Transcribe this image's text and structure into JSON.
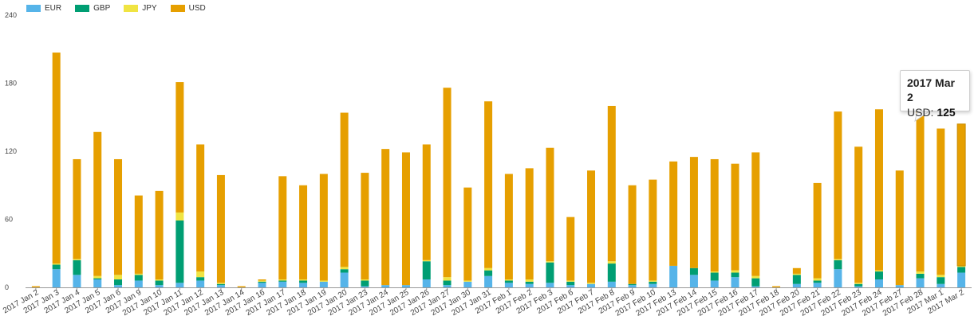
{
  "legend": [
    {
      "name": "EUR",
      "color": "#56b4e9"
    },
    {
      "name": "GBP",
      "color": "#009e73"
    },
    {
      "name": "JPY",
      "color": "#f0e442"
    },
    {
      "name": "USD",
      "color": "#e69f00"
    }
  ],
  "tooltip": {
    "date": "2017 Mar 2",
    "series": "USD:",
    "value": "125"
  },
  "chart_data": {
    "type": "bar",
    "stacked": true,
    "title": "",
    "xlabel": "",
    "ylabel": "",
    "ylim": [
      0,
      240
    ],
    "yticks": [
      0,
      60,
      120,
      180,
      240
    ],
    "grid": false,
    "legend_position": "top-left",
    "highlighted_category": "2017 Mar 2",
    "categories": [
      "2017 Jan 2",
      "2017 Jan 3",
      "2017 Jan 4",
      "2017 Jan 5",
      "2017 Jan 6",
      "2017 Jan 9",
      "2017 Jan 10",
      "2017 Jan 11",
      "2017 Jan 12",
      "2017 Jan 13",
      "2017 Jan 14",
      "2017 Jan 16",
      "2017 Jan 17",
      "2017 Jan 18",
      "2017 Jan 19",
      "2017 Jan 20",
      "2017 Jan 23",
      "2017 Jan 24",
      "2017 Jan 25",
      "2017 Jan 26",
      "2017 Jan 27",
      "2017 Jan 30",
      "2017 Jan 31",
      "2017 Feb 1",
      "2017 Feb 2",
      "2017 Feb 3",
      "2017 Feb 6",
      "2017 Feb 7",
      "2017 Feb 8",
      "2017 Feb 9",
      "2017 Feb 10",
      "2017 Feb 13",
      "2017 Feb 14",
      "2017 Feb 15",
      "2017 Feb 16",
      "2017 Feb 17",
      "2017 Feb 18",
      "2017 Feb 20",
      "2017 Feb 21",
      "2017 Feb 22",
      "2017 Feb 23",
      "2017 Feb 24",
      "2017 Feb 27",
      "2017 Feb 28",
      "2017 Mar 1",
      "2017 Mar 2"
    ],
    "series": [
      {
        "name": "EUR",
        "color": "#56b4e9",
        "values": [
          0,
          16,
          11,
          7,
          2,
          6,
          2,
          4,
          6,
          2,
          0,
          4,
          5,
          4,
          5,
          13,
          1,
          2,
          2,
          7,
          2,
          5,
          10,
          4,
          3,
          4,
          2,
          3,
          5,
          2,
          3,
          19,
          11,
          6,
          9,
          1,
          0,
          3,
          4,
          16,
          1,
          7,
          2,
          8,
          3,
          13
        ]
      },
      {
        "name": "GBP",
        "color": "#009e73",
        "values": [
          0,
          4,
          13,
          1,
          5,
          5,
          4,
          55,
          3,
          1,
          0,
          1,
          1,
          2,
          0,
          3,
          5,
          0,
          0,
          16,
          4,
          0,
          5,
          2,
          2,
          18,
          3,
          0,
          16,
          1,
          2,
          0,
          6,
          7,
          4,
          7,
          0,
          8,
          2,
          8,
          2,
          7,
          0,
          4,
          6,
          5
        ]
      },
      {
        "name": "JPY",
        "color": "#f0e442",
        "values": [
          0,
          1,
          1,
          2,
          4,
          1,
          1,
          7,
          5,
          1,
          0,
          1,
          1,
          1,
          1,
          2,
          1,
          0,
          0,
          1,
          3,
          1,
          2,
          1,
          2,
          1,
          1,
          1,
          2,
          0,
          1,
          0,
          0,
          1,
          2,
          2,
          0,
          1,
          2,
          1,
          1,
          1,
          0,
          2,
          2,
          1
        ]
      },
      {
        "name": "USD",
        "color": "#e69f00",
        "values": [
          1,
          186,
          88,
          127,
          102,
          69,
          78,
          115,
          112,
          95,
          1,
          1,
          91,
          83,
          94,
          136,
          94,
          120,
          117,
          102,
          167,
          82,
          147,
          93,
          98,
          100,
          56,
          99,
          137,
          87,
          89,
          92,
          98,
          99,
          94,
          109,
          1,
          5,
          84,
          130,
          120,
          142,
          101,
          146,
          129,
          125
        ]
      }
    ]
  }
}
